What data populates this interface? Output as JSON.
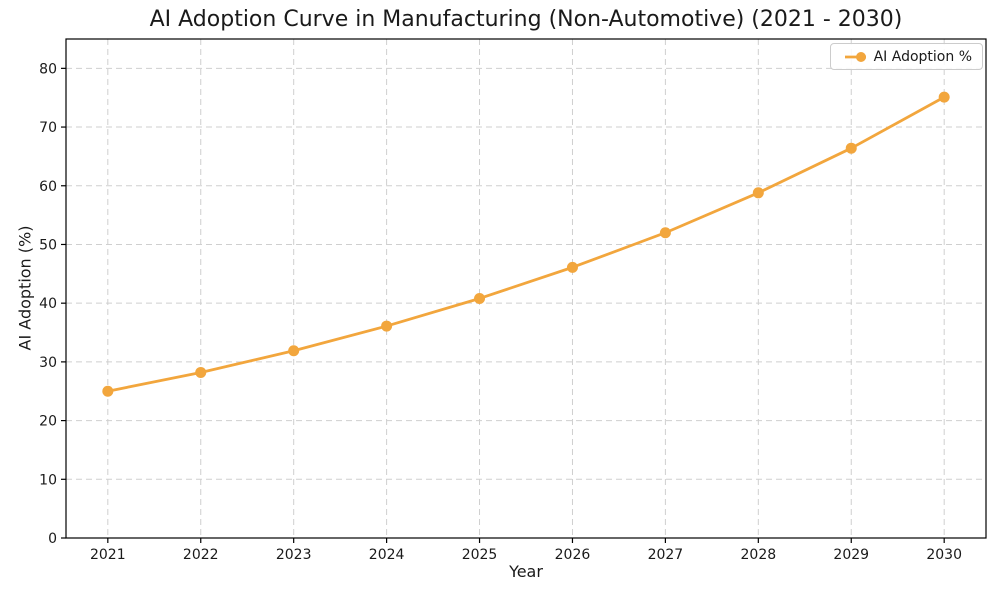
{
  "figure": {
    "background": "#ffffff"
  },
  "chart_data": {
    "type": "line",
    "title": "AI Adoption Curve in Manufacturing (Non-Automotive) (2021 - 2030)",
    "xlabel": "Year",
    "ylabel": "AI Adoption (%)",
    "x": [
      2021,
      2022,
      2023,
      2024,
      2025,
      2026,
      2027,
      2028,
      2029,
      2030
    ],
    "series": [
      {
        "name": "AI Adoption %",
        "color": "#F2A63D",
        "marker": "circle",
        "values": [
          25.0,
          28.2,
          31.9,
          36.1,
          40.8,
          46.1,
          52.0,
          58.8,
          66.4,
          75.1
        ]
      }
    ],
    "xlim": [
      2020.55,
      2030.45
    ],
    "ylim": [
      0,
      85
    ],
    "yticks": [
      0,
      10,
      20,
      30,
      40,
      50,
      60,
      70,
      80
    ],
    "grid": true,
    "grid_color": "#cfcfcf",
    "axis_color": "#000000",
    "text_color": "#1a1a1a",
    "legend": {
      "position": "upper-right",
      "label": "AI Adoption %"
    }
  }
}
